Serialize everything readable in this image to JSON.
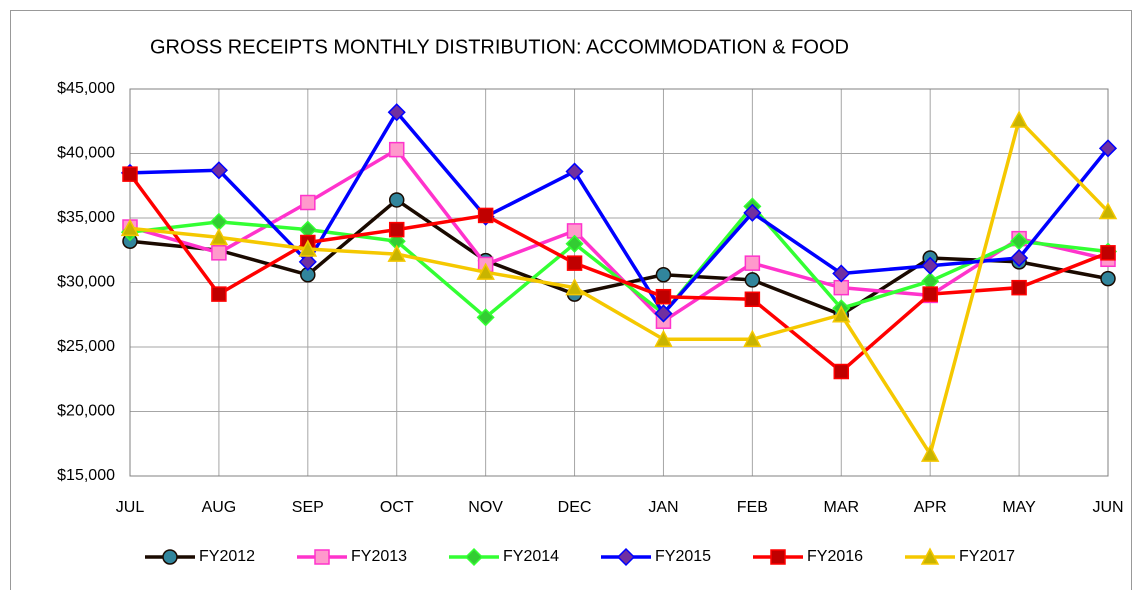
{
  "chart_data": {
    "type": "line",
    "title": "GROSS RECEIPTS MONTHLY DISTRIBUTION:  ACCOMMODATION & FOOD",
    "categories": [
      "JUL",
      "AUG",
      "SEP",
      "OCT",
      "NOV",
      "DEC",
      "JAN",
      "FEB",
      "MAR",
      "APR",
      "MAY",
      "JUN"
    ],
    "ylim": [
      15000,
      45000
    ],
    "yticks": [
      {
        "value": 15000,
        "label": "$15,000"
      },
      {
        "value": 20000,
        "label": "$20,000"
      },
      {
        "value": 25000,
        "label": "$25,000"
      },
      {
        "value": 30000,
        "label": "$30,000"
      },
      {
        "value": 35000,
        "label": "$35,000"
      },
      {
        "value": 40000,
        "label": "$40,000"
      },
      {
        "value": 45000,
        "label": "$45,000"
      }
    ],
    "grid": true,
    "legend": "bottom",
    "series": [
      {
        "name": "FY2012",
        "color": "#1a0a00",
        "marker": "circle",
        "marker_color": "#31859c",
        "values": [
          33200,
          32500,
          30600,
          36400,
          31700,
          29100,
          30600,
          30200,
          27500,
          31900,
          31600,
          30300
        ]
      },
      {
        "name": "FY2013",
        "color": "#ff33cc",
        "marker": "square",
        "marker_color": "#ff99cc",
        "values": [
          34300,
          32300,
          36200,
          40300,
          31400,
          34000,
          27000,
          31500,
          29600,
          29000,
          33400,
          31800
        ]
      },
      {
        "name": "FY2014",
        "color": "#33ff33",
        "marker": "diamond",
        "marker_color": "#33cc33",
        "values": [
          33900,
          34700,
          34100,
          33200,
          27300,
          33000,
          27600,
          35900,
          28000,
          30100,
          33200,
          32400
        ]
      },
      {
        "name": "FY2015",
        "color": "#0000ff",
        "marker": "diamond",
        "marker_color": "#7030a0",
        "values": [
          38500,
          38700,
          31600,
          43200,
          35100,
          38600,
          27600,
          35400,
          30700,
          31300,
          31900,
          40400
        ]
      },
      {
        "name": "FY2016",
        "color": "#ff0000",
        "marker": "square",
        "marker_color": "#c00000",
        "values": [
          38400,
          29100,
          33100,
          34100,
          35200,
          31500,
          28900,
          28700,
          23100,
          29100,
          29600,
          32300
        ]
      },
      {
        "name": "FY2017",
        "color": "#f5c800",
        "marker": "triangle",
        "marker_color": "#c8b400",
        "values": [
          34200,
          33500,
          32600,
          32200,
          30800,
          29600,
          25600,
          25600,
          27500,
          16700,
          42600,
          35500
        ]
      }
    ]
  }
}
